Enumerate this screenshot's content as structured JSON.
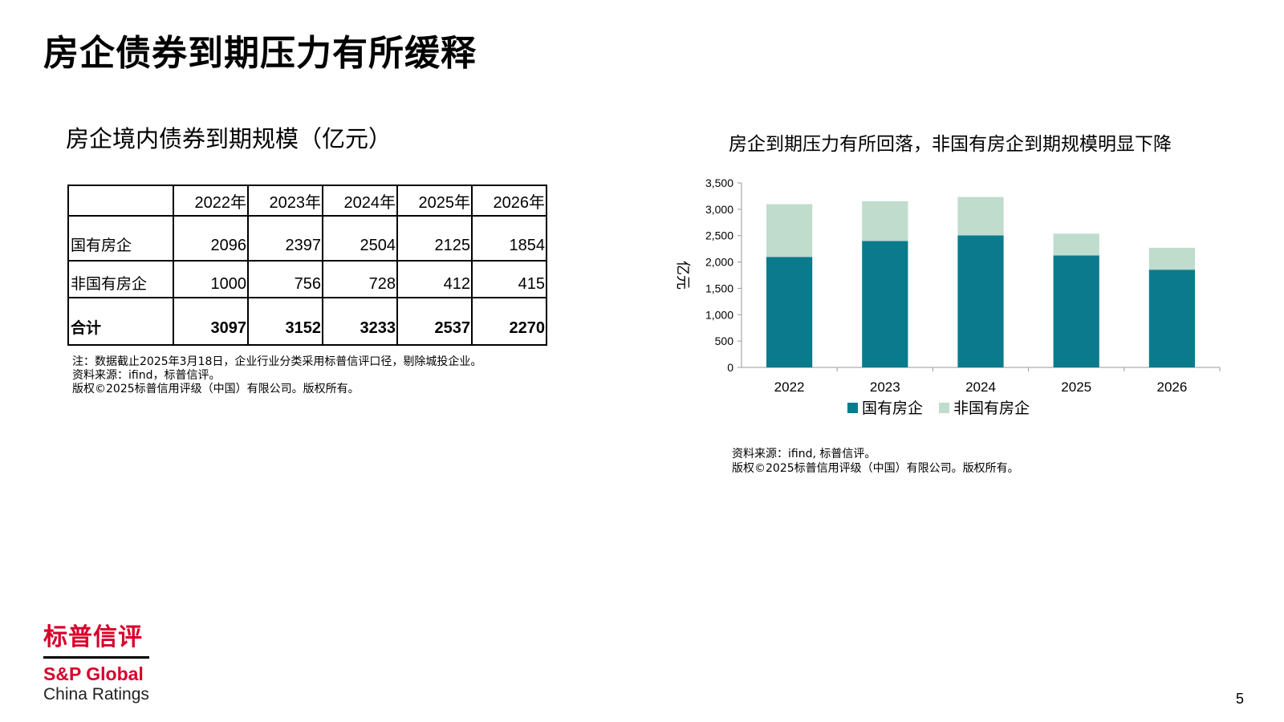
{
  "page": {
    "title": "房企债券到期压力有所缓释",
    "page_number": "5"
  },
  "table": {
    "title": "房企境内债券到期规模（亿元）",
    "headers": [
      "",
      "2022年",
      "2023年",
      "2024年",
      "2025年",
      "2026年"
    ],
    "rows": [
      {
        "label": "国有房企",
        "values": [
          "2096",
          "2397",
          "2504",
          "2125",
          "1854"
        ]
      },
      {
        "label": "非国有房企",
        "values": [
          "1000",
          "756",
          "728",
          "412",
          "415"
        ]
      },
      {
        "label": "合计",
        "values": [
          "3097",
          "3152",
          "3233",
          "2537",
          "2270"
        ]
      }
    ],
    "notes": [
      "注：数据截止2025年3月18日，企业行业分类采用标普信评口径，剔除城投企业。",
      "资料来源：ifind，标普信评。",
      "版权©2025标普信用评级（中国）有限公司。版权所有。"
    ]
  },
  "chart_data": {
    "type": "bar",
    "stacked": true,
    "title": "房企到期压力有所回落，非国有房企到期规模明显下降",
    "categories": [
      "2022",
      "2023",
      "2024",
      "2025",
      "2026"
    ],
    "series": [
      {
        "name": "国有房企",
        "values": [
          2096,
          2397,
          2504,
          2125,
          1854
        ],
        "color": "#0b7a8c"
      },
      {
        "name": "非国有房企",
        "values": [
          1000,
          756,
          728,
          412,
          415
        ],
        "color": "#bfdccd"
      }
    ],
    "ylabel": "亿元",
    "ylim": [
      0,
      3500
    ],
    "yticks": [
      "0",
      "500",
      "1,000",
      "1,500",
      "2,000",
      "2,500",
      "3,000",
      "3,500"
    ],
    "ytick_values": [
      0,
      500,
      1000,
      1500,
      2000,
      2500,
      3000,
      3500
    ],
    "legend": "bottom",
    "grid": false
  },
  "chart_notes": [
    "资料来源：ifind, 标普信评。",
    "版权©2025标普信用评级（中国）有限公司。版权所有。"
  ],
  "logo": {
    "cn": "标普信评",
    "sp": "S&P Global",
    "cr": "China Ratings"
  }
}
